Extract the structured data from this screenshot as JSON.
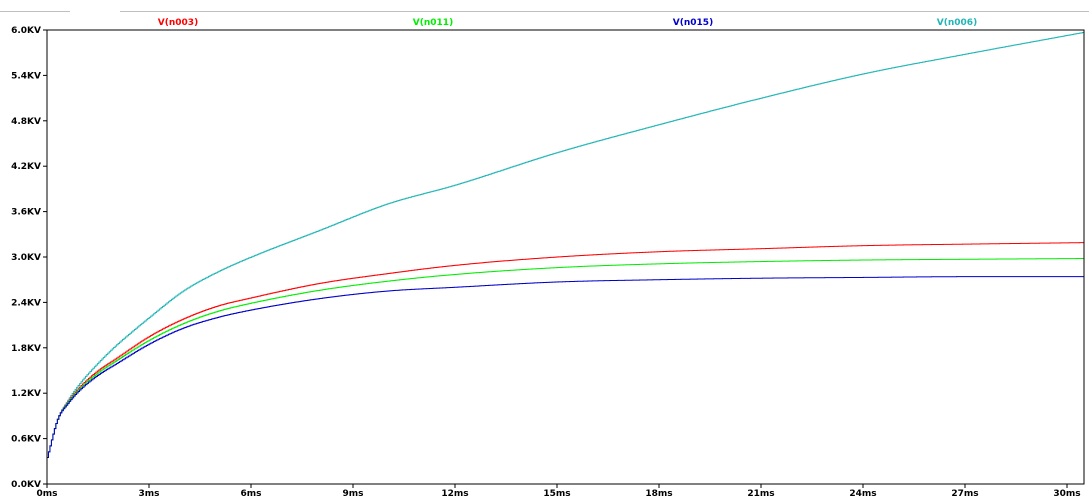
{
  "chart_data": {
    "type": "line",
    "title": "",
    "xlabel": "",
    "ylabel": "",
    "x_unit": "ms",
    "y_unit": "KV",
    "xlim": [
      0,
      30.5
    ],
    "ylim": [
      0,
      6.0
    ],
    "x_ticks": [
      0,
      3,
      6,
      9,
      12,
      15,
      18,
      21,
      24,
      27,
      30
    ],
    "x_tick_labels": [
      "0ms",
      "3ms",
      "6ms",
      "9ms",
      "12ms",
      "15ms",
      "18ms",
      "21ms",
      "24ms",
      "27ms",
      "30ms"
    ],
    "y_ticks": [
      0,
      0.6,
      1.2,
      1.8,
      2.4,
      3.0,
      3.6,
      4.2,
      4.8,
      5.4,
      6.0
    ],
    "y_tick_labels": [
      "0.0KV",
      "0.6KV",
      "1.2KV",
      "1.8KV",
      "2.4KV",
      "3.0KV",
      "3.6KV",
      "4.2KV",
      "4.8KV",
      "5.4KV",
      "6.0KV"
    ],
    "grid": false,
    "legend": "top",
    "series": [
      {
        "name": "V(n003)",
        "color": "#ff0000",
        "x": [
          0,
          0.3,
          0.6,
          1,
          1.5,
          2,
          3,
          4,
          5,
          6,
          8,
          10,
          12,
          15,
          18,
          21,
          24,
          27,
          30.5
        ],
        "values": [
          0.35,
          0.85,
          1.08,
          1.3,
          1.5,
          1.65,
          1.95,
          2.18,
          2.35,
          2.46,
          2.65,
          2.78,
          2.89,
          3.0,
          3.07,
          3.11,
          3.15,
          3.17,
          3.19
        ]
      },
      {
        "name": "V(n011)",
        "color": "#00ee00",
        "x": [
          0,
          0.3,
          0.6,
          1,
          1.5,
          2,
          3,
          4,
          5,
          6,
          8,
          10,
          12,
          15,
          18,
          21,
          24,
          27,
          30.5
        ],
        "values": [
          0.35,
          0.85,
          1.07,
          1.28,
          1.47,
          1.62,
          1.9,
          2.12,
          2.28,
          2.39,
          2.56,
          2.68,
          2.77,
          2.86,
          2.91,
          2.94,
          2.96,
          2.97,
          2.98
        ]
      },
      {
        "name": "V(n015)",
        "color": "#0000cc",
        "x": [
          0,
          0.3,
          0.6,
          1,
          1.5,
          2,
          3,
          4,
          5,
          6,
          8,
          10,
          12,
          15,
          18,
          21,
          24,
          27,
          30.5
        ],
        "values": [
          0.35,
          0.85,
          1.06,
          1.26,
          1.44,
          1.58,
          1.85,
          2.06,
          2.2,
          2.3,
          2.45,
          2.55,
          2.6,
          2.67,
          2.7,
          2.72,
          2.73,
          2.74,
          2.74
        ]
      },
      {
        "name": "V(n006)",
        "color": "#22b5b5",
        "x": [
          0,
          0.3,
          0.6,
          1,
          1.5,
          2,
          3,
          4,
          5,
          6,
          8,
          10,
          12,
          15,
          18,
          21,
          24,
          27,
          30.5
        ],
        "values": [
          0.35,
          0.85,
          1.1,
          1.35,
          1.6,
          1.82,
          2.2,
          2.55,
          2.8,
          3.0,
          3.35,
          3.7,
          3.95,
          4.38,
          4.75,
          5.1,
          5.42,
          5.68,
          5.97
        ]
      }
    ]
  }
}
